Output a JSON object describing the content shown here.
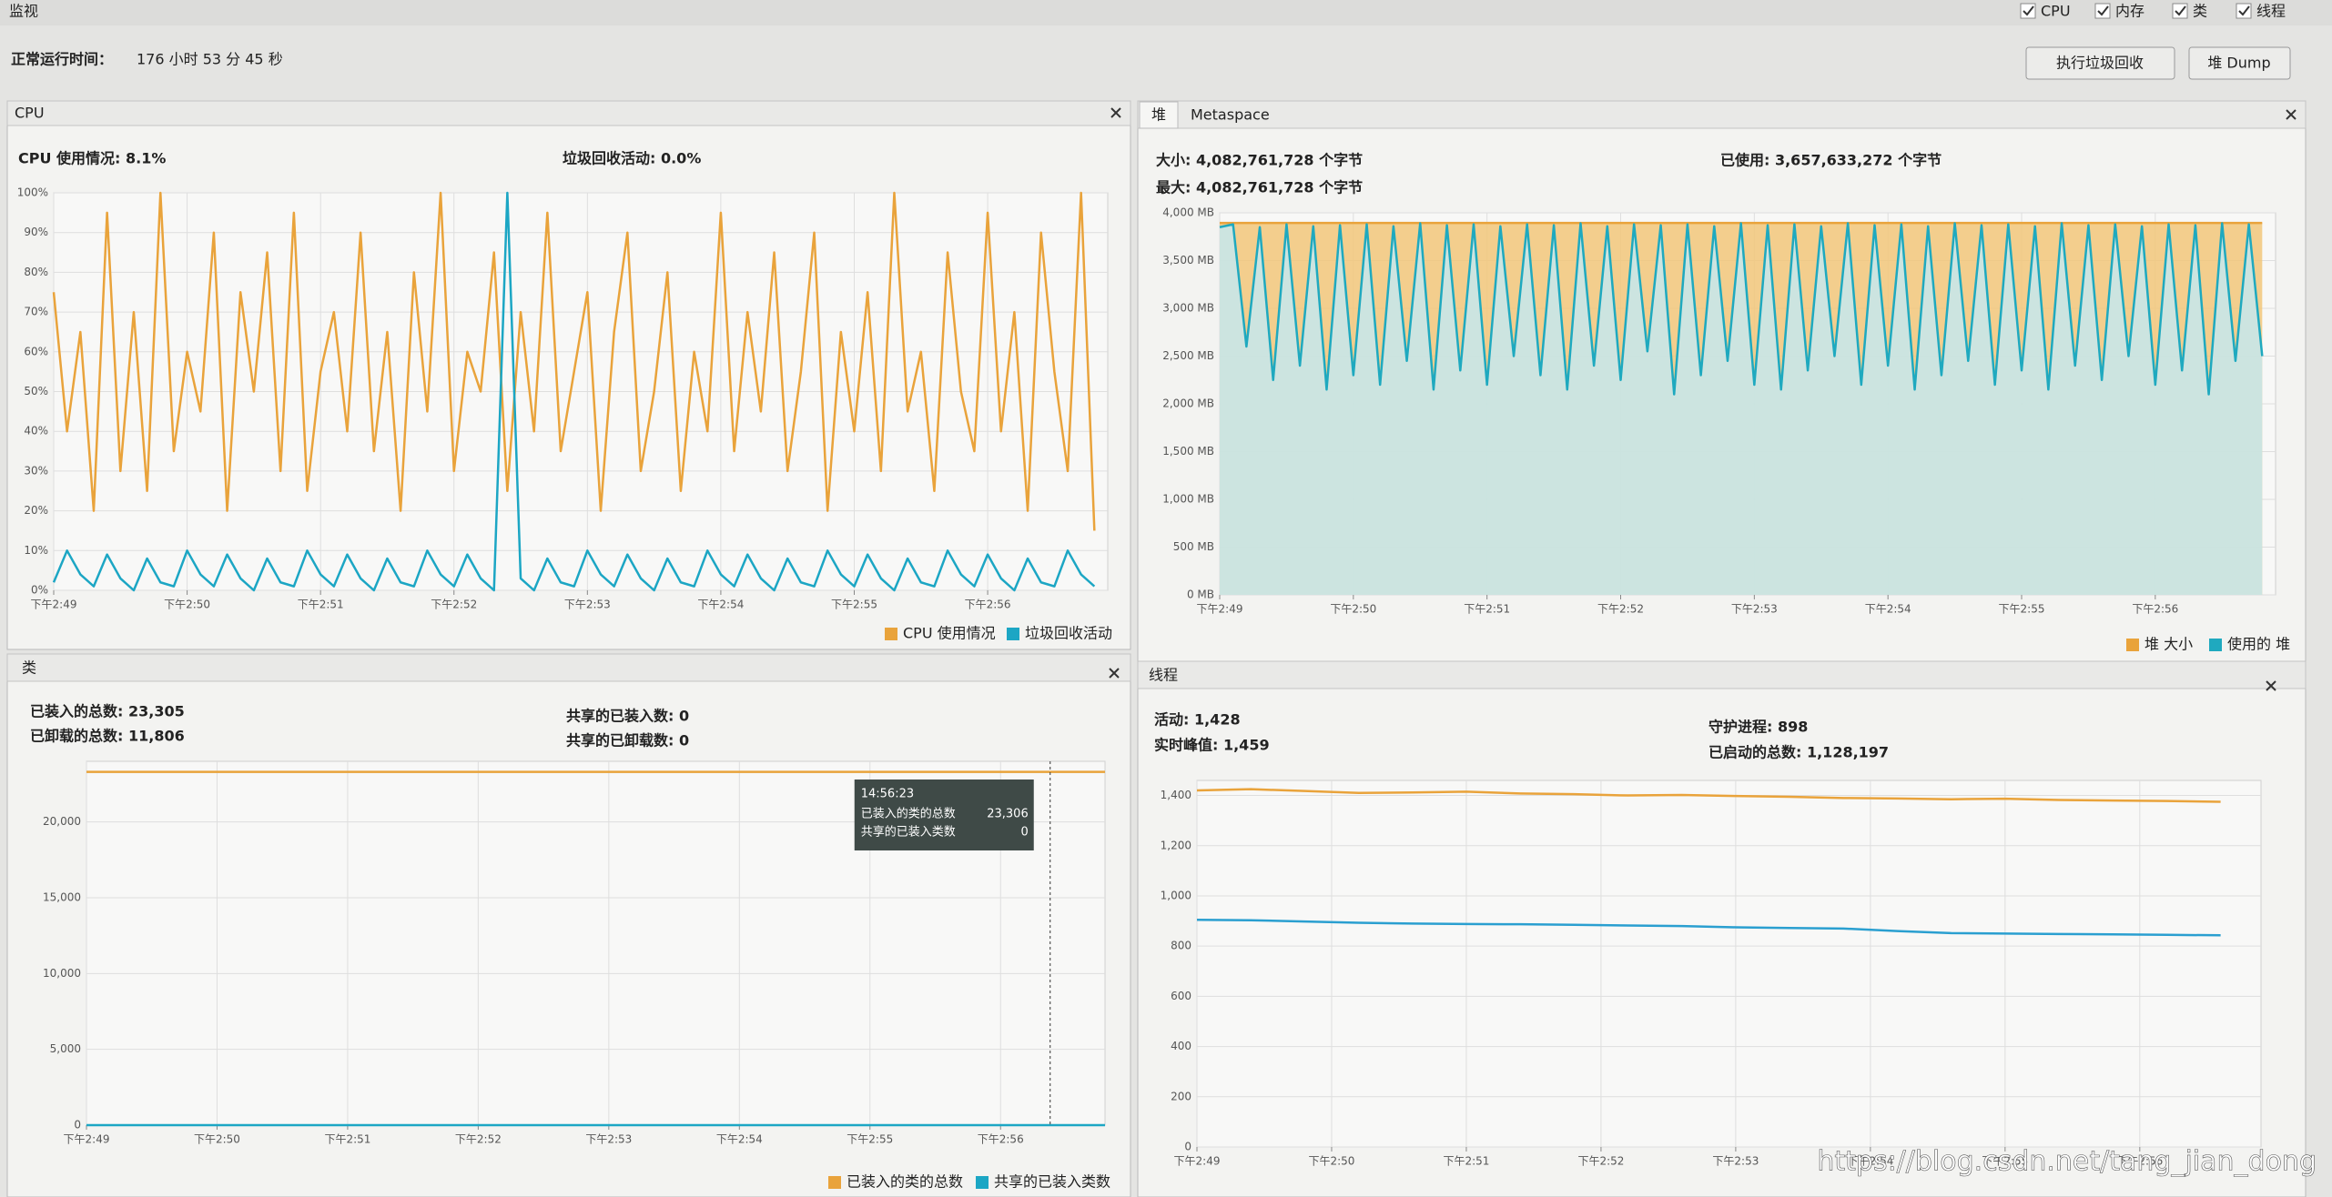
{
  "header": {
    "title": "监视",
    "checkboxes": [
      "CPU",
      "内存",
      "类",
      "线程"
    ],
    "uptime_label": "正常运行时间：",
    "uptime_value": "176 小时 53 分 45 秒",
    "buttons": [
      "执行垃圾回收",
      "堆 Dump"
    ]
  },
  "watermark": "https://blog.csdn.net/tang_jian_dong",
  "chart_data": [
    {
      "type": "line",
      "title": "CPU",
      "stats": [
        "CPU 使用情况: 8.1%",
        "垃圾回收活动: 0.0%"
      ],
      "x": [
        49,
        49.1,
        49.2,
        49.3,
        49.4,
        49.5,
        49.6,
        49.7,
        49.8,
        49.9,
        50,
        50.1,
        50.2,
        50.3,
        50.4,
        50.5,
        50.6,
        50.7,
        50.8,
        50.9,
        51,
        51.1,
        51.2,
        51.3,
        51.4,
        51.5,
        51.6,
        51.7,
        51.8,
        51.9,
        52,
        52.1,
        52.2,
        52.3,
        52.4,
        52.5,
        52.6,
        52.7,
        52.8,
        52.9,
        53,
        53.1,
        53.2,
        53.3,
        53.4,
        53.5,
        53.6,
        53.7,
        53.8,
        53.9,
        54,
        54.1,
        54.2,
        54.3,
        54.4,
        54.5,
        54.6,
        54.7,
        54.8,
        54.9,
        55,
        55.1,
        55.2,
        55.3,
        55.4,
        55.5,
        55.6,
        55.7,
        55.8,
        55.9,
        56,
        56.1,
        56.2,
        56.3,
        56.4,
        56.5,
        56.6,
        56.7,
        56.8
      ],
      "series": [
        {
          "name": "CPU 使用情况",
          "color": "#e9a33b",
          "values": [
            75,
            40,
            65,
            20,
            95,
            30,
            70,
            25,
            100,
            35,
            60,
            45,
            90,
            20,
            75,
            50,
            85,
            30,
            95,
            25,
            55,
            70,
            40,
            90,
            35,
            65,
            20,
            80,
            45,
            100,
            30,
            60,
            50,
            85,
            25,
            70,
            40,
            95,
            35,
            55,
            75,
            20,
            65,
            90,
            30,
            50,
            80,
            25,
            60,
            40,
            95,
            35,
            70,
            45,
            85,
            30,
            55,
            90,
            20,
            65,
            40,
            75,
            30,
            100,
            45,
            60,
            25,
            85,
            50,
            35,
            95,
            40,
            70,
            20,
            90,
            55,
            30,
            100,
            15
          ]
        },
        {
          "name": "垃圾回收活动",
          "color": "#1ca6c4",
          "values": [
            2,
            10,
            4,
            1,
            9,
            3,
            0,
            8,
            2,
            1,
            10,
            4,
            1,
            9,
            3,
            0,
            8,
            2,
            1,
            10,
            4,
            1,
            9,
            3,
            0,
            8,
            2,
            1,
            10,
            4,
            1,
            9,
            3,
            0,
            100,
            3,
            0,
            8,
            2,
            1,
            10,
            4,
            1,
            9,
            3,
            0,
            8,
            2,
            1,
            10,
            4,
            1,
            9,
            3,
            0,
            8,
            2,
            1,
            10,
            4,
            1,
            9,
            3,
            0,
            8,
            2,
            1,
            10,
            4,
            1,
            9,
            3,
            0,
            8,
            2,
            1,
            10,
            4,
            1
          ]
        }
      ],
      "xlim": [
        49,
        56.9
      ],
      "xticks": [
        {
          "value": 49,
          "label": "下午2:49"
        },
        {
          "value": 50,
          "label": "下午2:50"
        },
        {
          "value": 51,
          "label": "下午2:51"
        },
        {
          "value": 52,
          "label": "下午2:52"
        },
        {
          "value": 53,
          "label": "下午2:53"
        },
        {
          "value": 54,
          "label": "下午2:54"
        },
        {
          "value": 55,
          "label": "下午2:55"
        },
        {
          "value": 56,
          "label": "下午2:56"
        }
      ],
      "ylim": [
        0,
        100
      ],
      "yticks": [
        {
          "value": 0,
          "label": "0%"
        },
        {
          "value": 10,
          "label": "10%"
        },
        {
          "value": 20,
          "label": "20%"
        },
        {
          "value": 30,
          "label": "30%"
        },
        {
          "value": 40,
          "label": "40%"
        },
        {
          "value": 50,
          "label": "50%"
        },
        {
          "value": 60,
          "label": "60%"
        },
        {
          "value": 70,
          "label": "70%"
        },
        {
          "value": 80,
          "label": "80%"
        },
        {
          "value": 90,
          "label": "90%"
        },
        {
          "value": 100,
          "label": "100%"
        }
      ],
      "grid": true
    },
    {
      "type": "area",
      "tabs": [
        "堆",
        "Metaspace"
      ],
      "stats": [
        "大小: 4,082,761,728 个字节",
        "最大: 4,082,761,728 个字节",
        "已使用: 3,657,633,272 个字节"
      ],
      "x": [
        49,
        49.1,
        49.2,
        49.3,
        49.4,
        49.5,
        49.6,
        49.7,
        49.8,
        49.9,
        50,
        50.1,
        50.2,
        50.3,
        50.4,
        50.5,
        50.6,
        50.7,
        50.8,
        50.9,
        51,
        51.1,
        51.2,
        51.3,
        51.4,
        51.5,
        51.6,
        51.7,
        51.8,
        51.9,
        52,
        52.1,
        52.2,
        52.3,
        52.4,
        52.5,
        52.6,
        52.7,
        52.8,
        52.9,
        53,
        53.1,
        53.2,
        53.3,
        53.4,
        53.5,
        53.6,
        53.7,
        53.8,
        53.9,
        54,
        54.1,
        54.2,
        54.3,
        54.4,
        54.5,
        54.6,
        54.7,
        54.8,
        54.9,
        55,
        55.1,
        55.2,
        55.3,
        55.4,
        55.5,
        55.6,
        55.7,
        55.8,
        55.9,
        56,
        56.1,
        56.2,
        56.3,
        56.4,
        56.5,
        56.6,
        56.7,
        56.8
      ],
      "series": [
        {
          "name": "堆 大小",
          "color": "#e9a33b",
          "fill": "#f2c77a",
          "values": [
            3894,
            3894,
            3894,
            3894,
            3894,
            3894,
            3894,
            3894,
            3894,
            3894,
            3894,
            3894,
            3894,
            3894,
            3894,
            3894,
            3894,
            3894,
            3894,
            3894,
            3894,
            3894,
            3894,
            3894,
            3894,
            3894,
            3894,
            3894,
            3894,
            3894,
            3894,
            3894,
            3894,
            3894,
            3894,
            3894,
            3894,
            3894,
            3894,
            3894,
            3894,
            3894,
            3894,
            3894,
            3894,
            3894,
            3894,
            3894,
            3894,
            3894,
            3894,
            3894,
            3894,
            3894,
            3894,
            3894,
            3894,
            3894,
            3894,
            3894,
            3894,
            3894,
            3894,
            3894,
            3894,
            3894,
            3894,
            3894,
            3894,
            3894,
            3894,
            3894,
            3894,
            3894,
            3894,
            3894,
            3894,
            3894,
            3894
          ]
        },
        {
          "name": "使用的 堆",
          "color": "#1fa9bf",
          "fill": "#c4e8ee",
          "values": [
            3850,
            3880,
            2600,
            3850,
            2250,
            3880,
            2400,
            3860,
            2150,
            3870,
            2300,
            3880,
            2200,
            3860,
            2450,
            3890,
            2150,
            3870,
            2350,
            3880,
            2200,
            3860,
            2500,
            3880,
            2300,
            3870,
            2150,
            3890,
            2400,
            3860,
            2250,
            3880,
            2550,
            3870,
            2100,
            3880,
            2300,
            3860,
            2450,
            3890,
            2200,
            3870,
            2150,
            3880,
            2350,
            3860,
            2500,
            3890,
            2200,
            3870,
            2400,
            3880,
            2150,
            3860,
            2300,
            3890,
            2450,
            3870,
            2200,
            3880,
            2350,
            3860,
            2150,
            3890,
            2400,
            3870,
            2250,
            3880,
            2500,
            3860,
            2200,
            3880,
            2350,
            3870,
            2100,
            3890,
            2450,
            3880,
            2500
          ]
        }
      ],
      "xlim": [
        49,
        56.9
      ],
      "xticks": [
        {
          "value": 49,
          "label": "下午2:49"
        },
        {
          "value": 50,
          "label": "下午2:50"
        },
        {
          "value": 51,
          "label": "下午2:51"
        },
        {
          "value": 52,
          "label": "下午2:52"
        },
        {
          "value": 53,
          "label": "下午2:53"
        },
        {
          "value": 54,
          "label": "下午2:54"
        },
        {
          "value": 55,
          "label": "下午2:55"
        },
        {
          "value": 56,
          "label": "下午2:56"
        }
      ],
      "ylim": [
        0,
        4000
      ],
      "yticks": [
        {
          "value": 0,
          "label": "0 MB"
        },
        {
          "value": 500,
          "label": "500 MB"
        },
        {
          "value": 1000,
          "label": "1,000 MB"
        },
        {
          "value": 1500,
          "label": "1,500 MB"
        },
        {
          "value": 2000,
          "label": "2,000 MB"
        },
        {
          "value": 2500,
          "label": "2,500 MB"
        },
        {
          "value": 3000,
          "label": "3,000 MB"
        },
        {
          "value": 3500,
          "label": "3,500 MB"
        },
        {
          "value": 4000,
          "label": "4,000 MB"
        }
      ],
      "grid": true
    },
    {
      "type": "line",
      "title": "类",
      "stats": [
        "已装入的总数: 23,305",
        "已卸载的总数: 11,806",
        "共享的已装入数: 0",
        "共享的已卸载数: 0"
      ],
      "x": [
        49,
        52.9,
        56.8
      ],
      "series": [
        {
          "name": "已装入的类的总数",
          "color": "#e9a33b",
          "values": [
            23306,
            23306,
            23306
          ]
        },
        {
          "name": "共享的已装入类数",
          "color": "#1ca6c4",
          "values": [
            0,
            0,
            0
          ]
        }
      ],
      "tooltip": {
        "x": 56.38,
        "time": "14:56:23",
        "rows": [
          [
            "已装入的类的总数",
            "23,306"
          ],
          [
            "共享的已装入类数",
            "0"
          ]
        ]
      },
      "xlim": [
        49,
        56.8
      ],
      "xticks": [
        {
          "value": 49,
          "label": "下午2:49"
        },
        {
          "value": 50,
          "label": "下午2:50"
        },
        {
          "value": 51,
          "label": "下午2:51"
        },
        {
          "value": 52,
          "label": "下午2:52"
        },
        {
          "value": 53,
          "label": "下午2:53"
        },
        {
          "value": 54,
          "label": "下午2:54"
        },
        {
          "value": 55,
          "label": "下午2:55"
        },
        {
          "value": 56,
          "label": "下午2:56"
        }
      ],
      "ylim": [
        0,
        24000
      ],
      "yticks": [
        0,
        {
          "value": 5000,
          "label": "5,000"
        },
        {
          "value": 10000,
          "label": "10,000"
        },
        {
          "value": 15000,
          "label": "15,000"
        },
        {
          "value": 20000,
          "label": "20,000"
        }
      ],
      "grid": true
    },
    {
      "type": "line",
      "title": "线程",
      "stats": [
        "活动: 1,428",
        "实时峰值: 1,459",
        "守护进程: 898",
        "已启动的总数: 1,128,197"
      ],
      "x": [
        49,
        49.4,
        49.8,
        50.2,
        50.6,
        51,
        51.4,
        51.8,
        52.2,
        52.6,
        53,
        53.4,
        53.8,
        54.2,
        54.6,
        55,
        55.4,
        55.8,
        56.2,
        56.6
      ],
      "series": [
        {
          "color": "#e9a33b",
          "values": [
            1420,
            1425,
            1418,
            1410,
            1412,
            1415,
            1408,
            1405,
            1400,
            1402,
            1398,
            1395,
            1390,
            1388,
            1385,
            1387,
            1382,
            1380,
            1378,
            1375
          ]
        },
        {
          "color": "#2a9fd0",
          "values": [
            905,
            903,
            898,
            893,
            890,
            888,
            887,
            885,
            882,
            880,
            875,
            872,
            870,
            860,
            852,
            850,
            848,
            847,
            845,
            843
          ]
        }
      ],
      "xlim": [
        49,
        56.9
      ],
      "xticks": [
        {
          "value": 49,
          "label": "下午2:49"
        },
        {
          "value": 50,
          "label": "下午2:50"
        },
        {
          "value": 51,
          "label": "下午2:51"
        },
        {
          "value": 52,
          "label": "下午2:52"
        },
        {
          "value": 53,
          "label": "下午2:53"
        },
        {
          "value": 54,
          "label": "下午2:54"
        },
        {
          "value": 55,
          "label": "下午2:55"
        },
        {
          "value": 56,
          "label": "下午2:56"
        }
      ],
      "ylim": [
        0,
        1460
      ],
      "yticks": [
        0,
        200,
        400,
        600,
        800,
        {
          "value": 1000,
          "label": "1,000"
        },
        {
          "value": 1200,
          "label": "1,200"
        },
        {
          "value": 1400,
          "label": "1,400"
        }
      ],
      "grid": true
    }
  ]
}
